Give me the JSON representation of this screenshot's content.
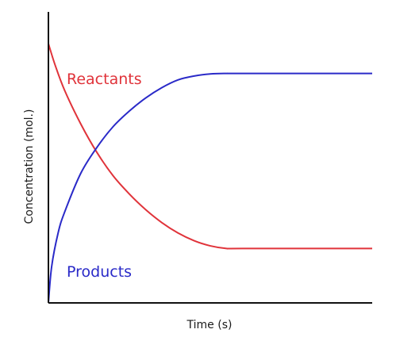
{
  "chart_data": {
    "type": "line",
    "title": "",
    "xlabel": "Time (s)",
    "ylabel": "Concentration (mol.)",
    "xlim": [
      0,
      100
    ],
    "ylim": [
      0,
      100
    ],
    "grid": false,
    "series": [
      {
        "name": "Reactants",
        "color": "#e0333a",
        "x": [
          0,
          2,
          5,
          10,
          15,
          20,
          25,
          30,
          35,
          40,
          45,
          50,
          55,
          60,
          100
        ],
        "y": [
          100,
          92,
          82,
          69,
          58,
          49,
          42,
          36,
          31,
          27,
          24,
          22,
          21,
          21,
          21
        ]
      },
      {
        "name": "Products",
        "color": "#2a2ac8",
        "x": [
          0,
          1,
          3,
          5,
          10,
          15,
          20,
          25,
          30,
          35,
          40,
          45,
          50,
          55,
          60,
          100
        ],
        "y": [
          0,
          14,
          27,
          35,
          50,
          60,
          68,
          74,
          79,
          83,
          86,
          87.5,
          88.3,
          88.5,
          88.5,
          88.5
        ]
      }
    ]
  }
}
